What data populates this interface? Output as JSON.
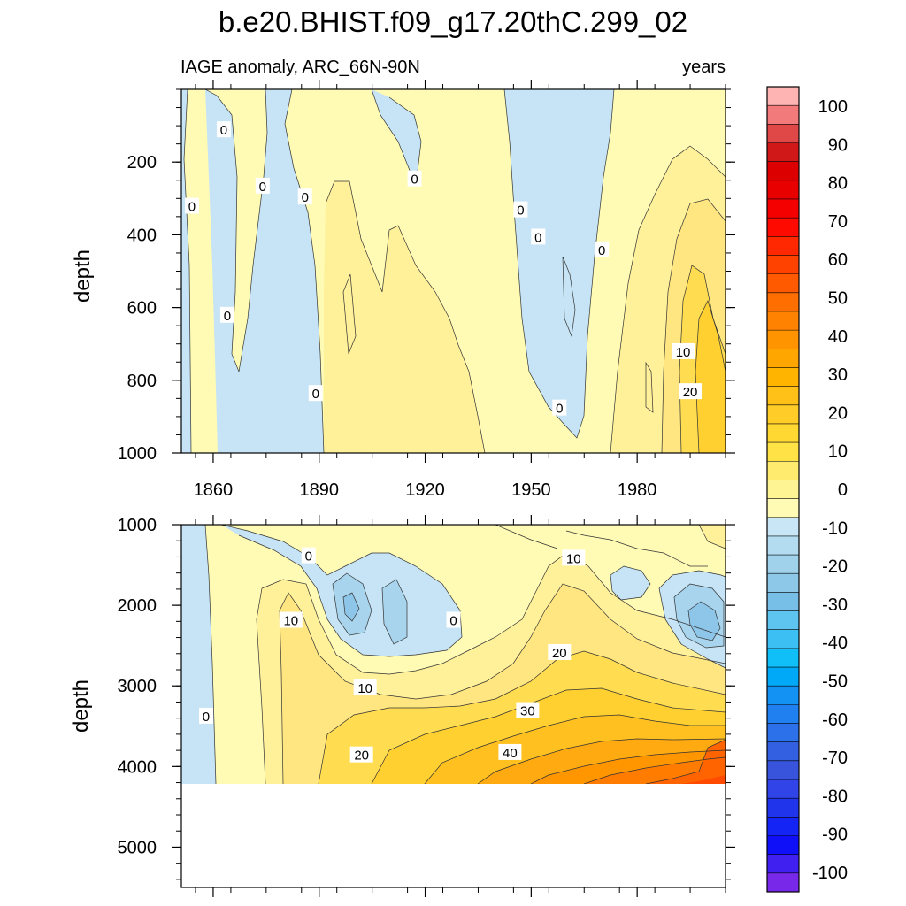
{
  "chart_data": {
    "type": "heatmap",
    "title": "b.e20.BHIST.f09_g17.20thC.299_02",
    "subtitle_left": "IAGE anomaly, ARC_66N-90N",
    "subtitle_right": "years",
    "xlabel": "",
    "ylabel": "depth",
    "x_ticks": [
      "1860",
      "1890",
      "1920",
      "1950",
      "1980"
    ],
    "x_range": [
      1851,
      2005
    ],
    "panels": [
      {
        "name": "upper",
        "depth_range": [
          0,
          1000
        ],
        "y_ticks": [
          "200",
          "400",
          "600",
          "800",
          "1000"
        ],
        "contour_labels": [
          {
            "text": "0",
            "year": 1854,
            "depth": 320
          },
          {
            "text": "0",
            "year": 1863,
            "depth": 110
          },
          {
            "text": "0",
            "year": 1864,
            "depth": 620
          },
          {
            "text": "0",
            "year": 1874,
            "depth": 265
          },
          {
            "text": "0",
            "year": 1886,
            "depth": 295
          },
          {
            "text": "0",
            "year": 1889,
            "depth": 835
          },
          {
            "text": "0",
            "year": 1917,
            "depth": 245
          },
          {
            "text": "0",
            "year": 1947,
            "depth": 330
          },
          {
            "text": "0",
            "year": 1952,
            "depth": 405
          },
          {
            "text": "0",
            "year": 1958,
            "depth": 875
          },
          {
            "text": "0",
            "year": 1970,
            "depth": 440
          },
          {
            "text": "10",
            "year": 1993,
            "depth": 720
          },
          {
            "text": "20",
            "year": 1995,
            "depth": 830
          }
        ]
      },
      {
        "name": "lower",
        "depth_range": [
          1000,
          5500
        ],
        "y_ticks": [
          "1000",
          "2000",
          "3000",
          "4000",
          "5000"
        ],
        "bottom_depth": 4125,
        "contour_labels": [
          {
            "text": "0",
            "year": 1887,
            "depth": 1380
          },
          {
            "text": "10",
            "year": 1882,
            "depth": 2180
          },
          {
            "text": "0",
            "year": 1858,
            "depth": 3370
          },
          {
            "text": "10",
            "year": 1903,
            "depth": 3020
          },
          {
            "text": "20",
            "year": 1902,
            "depth": 3850
          },
          {
            "text": "0",
            "year": 1928,
            "depth": 2180
          },
          {
            "text": "10",
            "year": 1962,
            "depth": 1410
          },
          {
            "text": "20",
            "year": 1958,
            "depth": 2580
          },
          {
            "text": "30",
            "year": 1949,
            "depth": 3300
          },
          {
            "text": "40",
            "year": 1944,
            "depth": 3820
          }
        ]
      }
    ],
    "colorbar": {
      "tick_labels": [
        "100",
        "90",
        "80",
        "70",
        "60",
        "50",
        "40",
        "30",
        "20",
        "10",
        "0",
        "-10",
        "-20",
        "-30",
        "-40",
        "-50",
        "-60",
        "-70",
        "-80",
        "-90",
        "-100"
      ],
      "colors": [
        "#ffb4b4",
        "#f27a7a",
        "#e04848",
        "#d01818",
        "#dc0000",
        "#e80000",
        "#f40000",
        "#ff0a00",
        "#ff2800",
        "#ff4200",
        "#ff5a00",
        "#ff6e00",
        "#ff8200",
        "#ff9400",
        "#ffa600",
        "#ffb400",
        "#ffc018",
        "#ffcc28",
        "#ffd832",
        "#ffe246",
        "#ffec6e",
        "#fff494",
        "#fffab4",
        "#c8e6f5",
        "#b4dcf0",
        "#a0d2ec",
        "#8ec8e8",
        "#78bfe8",
        "#5ec4f0",
        "#3cc0f4",
        "#10bef8",
        "#00a8f8",
        "#1492f4",
        "#2080f0",
        "#2c70ea",
        "#3260e0",
        "#3854dc",
        "#3044e8",
        "#2034ec",
        "#1424f4",
        "#1010f8",
        "#4020f0",
        "#7828e8"
      ]
    },
    "fill_colors": {
      "neg": "#c6e4f5",
      "neg2": "#a8d4ee",
      "neg3": "#8ec6ea",
      "pos0": "#fffbb4",
      "pos10": "#fff09a",
      "pos15": "#ffe680",
      "pos20": "#ffdc50",
      "pos25": "#ffd030",
      "pos30": "#ffc020",
      "pos35": "#ffaa10",
      "pos40": "#ff9600",
      "pos45": "#ff7c00",
      "pos50": "#ff6400",
      "pos60": "#ff4a00"
    }
  }
}
